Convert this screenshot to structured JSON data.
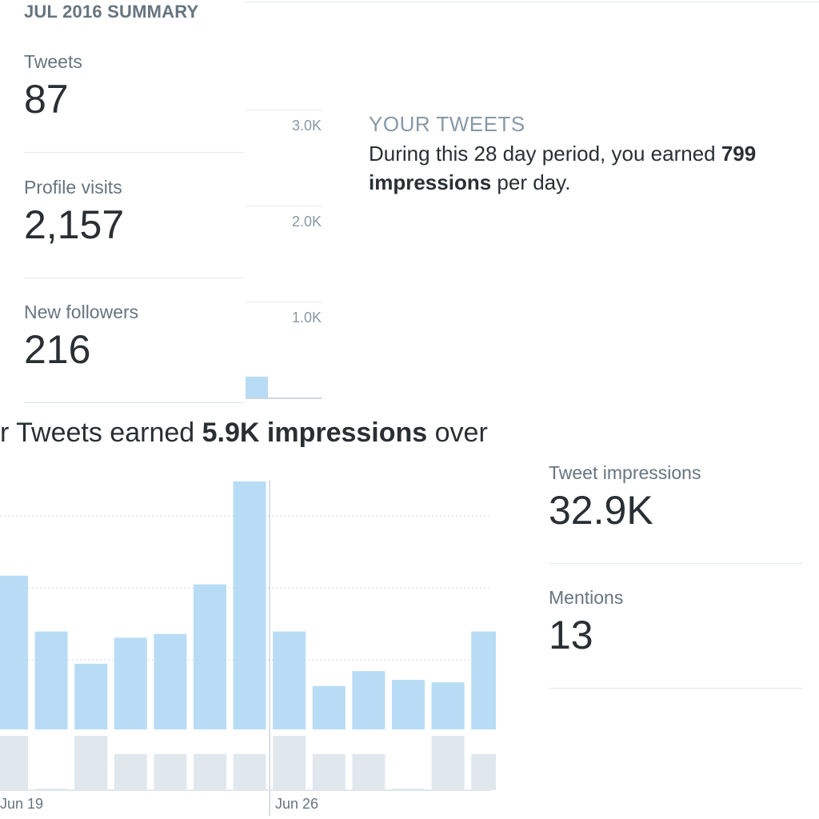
{
  "summary": {
    "heading": "JUL 2016 SUMMARY",
    "stats": [
      {
        "label": "Tweets",
        "value": "87"
      },
      {
        "label": "Profile visits",
        "value": "2,157"
      },
      {
        "label": "New followers",
        "value": "216"
      }
    ]
  },
  "mini_chart": {
    "ticks": [
      "3.0K",
      "2.0K",
      "1.0K"
    ]
  },
  "your_tweets": {
    "title": "YOUR TWEETS",
    "text_before": "During this 28 day period, you earned ",
    "bold_value": "799",
    "bold_unit": "impressions",
    "text_after": " per day."
  },
  "earned": {
    "prefix": "r Tweets earned ",
    "bold": "5.9K impressions",
    "suffix": " over"
  },
  "right_stats": [
    {
      "label": "Tweet impressions",
      "value": "32.9K"
    },
    {
      "label": "Mentions",
      "value": "13"
    }
  ],
  "chart_data": [
    {
      "type": "bar",
      "title": "",
      "ylabel": "",
      "xlabel": "",
      "ylim": [
        0,
        3200
      ],
      "yticks": [
        "3.0K",
        "2.0K",
        "1.0K"
      ],
      "values": [
        220
      ],
      "color": "#b8dcf5"
    },
    {
      "type": "bar",
      "title": "",
      "x_tick_labels": [
        "Jun 19",
        "Jun 26"
      ],
      "ylim": [
        0,
        1000
      ],
      "values": [
        620,
        395,
        265,
        370,
        385,
        585,
        1000,
        395,
        175,
        235,
        200,
        190,
        395
      ],
      "secondary_values": [
        3,
        0,
        3,
        2,
        2,
        2,
        2,
        3,
        2,
        2,
        0,
        3,
        2
      ],
      "color": "#b8dcf5",
      "secondary_color": "#e1e8ed"
    }
  ],
  "colors": {
    "bar": "#b8dcf5",
    "bar_secondary": "#e1e8ed",
    "text_dark": "#292f33",
    "text_muted": "#66757f"
  }
}
